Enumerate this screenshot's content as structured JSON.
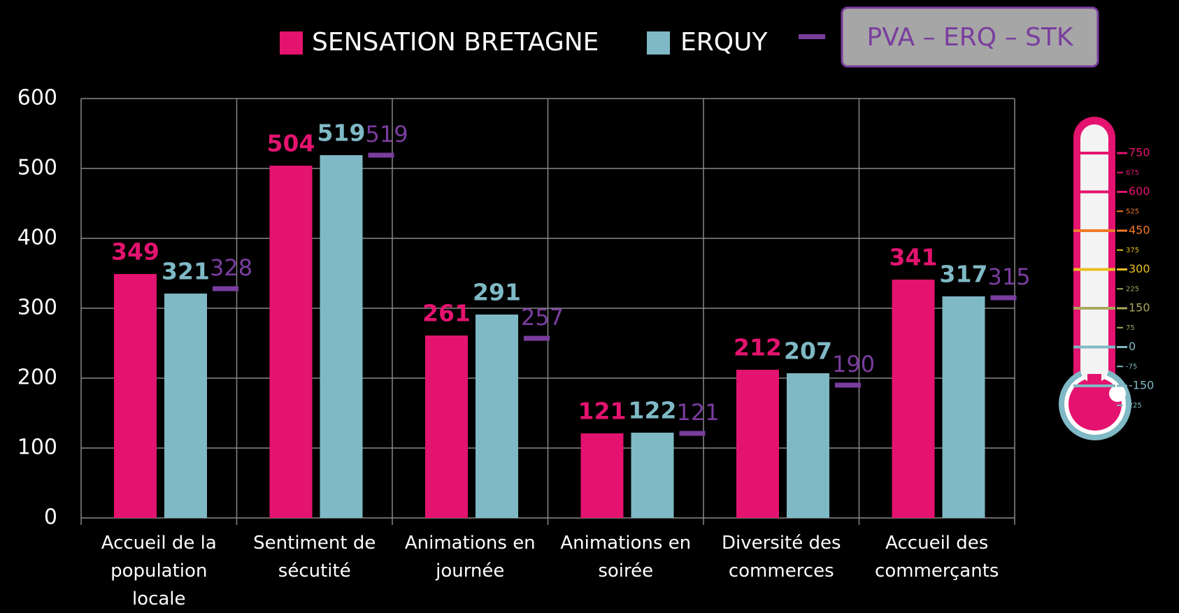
{
  "chart_data": {
    "type": "bar",
    "categories": [
      "Accueil de la population locale",
      "Sentiment de sécutité",
      "Animations en journée",
      "Animations en soirée",
      "Diversité des commerces",
      "Accueil des commerçants"
    ],
    "series": [
      {
        "name": "SENSATION BRETAGNE",
        "color": "#e3136f",
        "values": [
          349,
          504,
          261,
          121,
          212,
          341
        ]
      },
      {
        "name": "ERQUY",
        "color": "#7fb9c5",
        "values": [
          321,
          519,
          291,
          122,
          207,
          317
        ]
      },
      {
        "name": "PVA – ERQ – STK",
        "color": "#7a3d9e",
        "marker": "dash",
        "values": [
          328,
          519,
          257,
          121,
          190,
          315
        ]
      }
    ],
    "ylim": [
      0,
      600
    ],
    "yticks": [
      0,
      100,
      200,
      300,
      400,
      500,
      600
    ],
    "grid": true
  },
  "thermometer": {
    "major": [
      750,
      600,
      450,
      300,
      150,
      0,
      -150
    ],
    "minor": [
      675,
      525,
      375,
      225,
      75,
      -75,
      -225
    ]
  }
}
